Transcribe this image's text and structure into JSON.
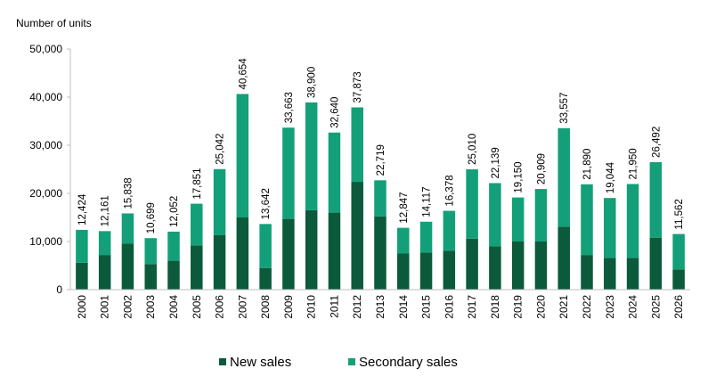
{
  "chart_data": {
    "type": "bar",
    "stacked": true,
    "ylabel": "Number of units",
    "ylim": [
      0,
      50000
    ],
    "yticks": [
      0,
      10000,
      20000,
      30000,
      40000,
      50000
    ],
    "ytick_labels": [
      "0",
      "10,000",
      "20,000",
      "30,000",
      "40,000",
      "50,000"
    ],
    "categories": [
      "2000",
      "2001",
      "2002",
      "2003",
      "2004",
      "2005",
      "2006",
      "2007",
      "2008",
      "2009",
      "2010",
      "2011",
      "2012",
      "2013",
      "2014",
      "2015",
      "2016",
      "2017",
      "2018",
      "2019",
      "2020",
      "2021",
      "2022",
      "2023",
      "2024",
      "2025",
      "2026"
    ],
    "totals": [
      12424,
      12161,
      15838,
      10699,
      12052,
      17851,
      25042,
      40654,
      13642,
      33663,
      38900,
      32640,
      37873,
      22719,
      12847,
      14117,
      16378,
      25010,
      22139,
      19150,
      20909,
      33557,
      21890,
      19044,
      21950,
      26492,
      11562
    ],
    "total_labels": [
      "12,424",
      "12,161",
      "15,838",
      "10,699",
      "12,052",
      "17,851",
      "25,042",
      "40,654",
      "13,642",
      "33,663",
      "38,900",
      "32,640",
      "37,873",
      "22,719",
      "12,847",
      "14,117",
      "16,378",
      "25,010",
      "22,139",
      "19,150",
      "20,909",
      "33,557",
      "21,890",
      "19,044",
      "21,950",
      "26,492",
      "11,562"
    ],
    "series": [
      {
        "name": "New sales",
        "color": "#0b5a3b",
        "values": [
          5600,
          7200,
          9600,
          5300,
          6000,
          9200,
          11300,
          15000,
          4500,
          14700,
          16500,
          16000,
          22400,
          15200,
          7500,
          7700,
          8100,
          10600,
          9000,
          10000,
          10000,
          13100,
          7200,
          6600,
          6600,
          10800,
          4200
        ]
      },
      {
        "name": "Secondary sales",
        "color": "#13a079",
        "values": [
          6824,
          4961,
          6238,
          5399,
          6052,
          8651,
          13742,
          25654,
          9142,
          18963,
          22400,
          16640,
          15473,
          7519,
          5347,
          6417,
          8278,
          14410,
          13139,
          9150,
          10909,
          20457,
          14690,
          12444,
          15350,
          15692,
          7362
        ]
      }
    ],
    "grid": false,
    "legend_position": "bottom"
  }
}
